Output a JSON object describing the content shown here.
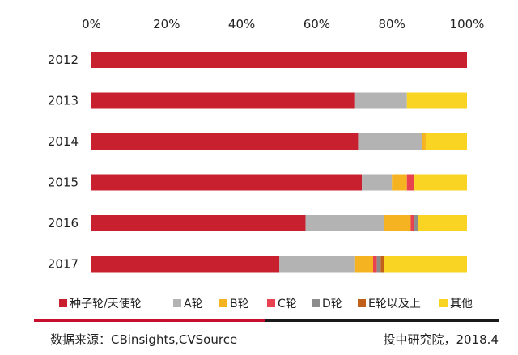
{
  "chart_data": {
    "type": "bar",
    "orientation": "horizontal",
    "stacked": true,
    "categories": [
      "2012",
      "2013",
      "2014",
      "2015",
      "2016",
      "2017"
    ],
    "series": [
      {
        "name": "种子轮/天使轮",
        "color": "#c8202f",
        "values": [
          100,
          70,
          71,
          72,
          57,
          50
        ]
      },
      {
        "name": "A轮",
        "color": "#b3b3b3",
        "values": [
          0,
          14,
          17,
          8,
          21,
          20
        ]
      },
      {
        "name": "B轮",
        "color": "#f5b321",
        "values": [
          0,
          0,
          1,
          4,
          7,
          5
        ]
      },
      {
        "name": "C轮",
        "color": "#e8414f",
        "values": [
          0,
          0,
          0,
          2,
          1,
          1
        ]
      },
      {
        "name": "D轮",
        "color": "#8c8c8c",
        "values": [
          0,
          0,
          0,
          0,
          1,
          1
        ]
      },
      {
        "name": "E轮以及上",
        "color": "#c0601a",
        "values": [
          0,
          0,
          0,
          0,
          0,
          1
        ]
      },
      {
        "name": "其他",
        "color": "#f9d423",
        "values": [
          0,
          16,
          11,
          14,
          13,
          22
        ]
      }
    ],
    "xlim": [
      0,
      100
    ],
    "xticks": [
      "0%",
      "20%",
      "40%",
      "60%",
      "80%",
      "100%"
    ],
    "grid": false,
    "legend_position": "bottom"
  },
  "footer": {
    "source": "数据来源：CBinsights,CVSource",
    "publisher": "投中研究院，2018.4"
  }
}
